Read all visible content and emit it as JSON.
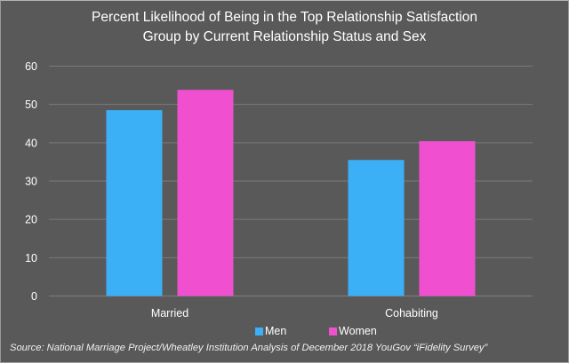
{
  "chart_data": {
    "type": "bar",
    "title_lines": [
      "Percent Likelihood of Being in the Top Relationship Satisfaction",
      "Group by Current Relationship Status and Sex"
    ],
    "categories": [
      "Married",
      "Cohabiting"
    ],
    "series": [
      {
        "name": "Men",
        "color": "#3CB0F7",
        "values": [
          48.5,
          35.5
        ]
      },
      {
        "name": "Women",
        "color": "#F050D0",
        "values": [
          53.8,
          40.4
        ]
      }
    ],
    "xlabel": "",
    "ylabel": "",
    "ylim": [
      0,
      60
    ],
    "yticks": [
      0,
      10,
      20,
      30,
      40,
      50,
      60
    ],
    "grid": true,
    "legend_position": "bottom",
    "source": "Source: National Marriage Project/Wheatley Institution Analysis of December 2018 YouGov “iFidelity Survey”"
  },
  "colors": {
    "background": "#595959",
    "gridline": "#7a7a7a",
    "text": "#ffffff"
  }
}
